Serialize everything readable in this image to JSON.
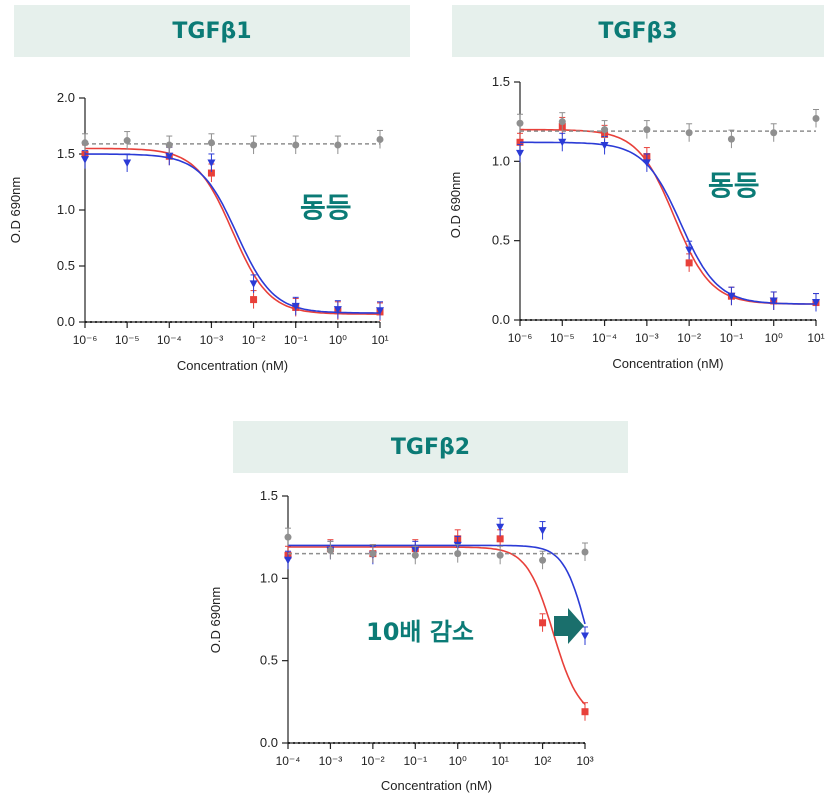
{
  "chart_data": [
    {
      "type": "line",
      "title": "TGFβ1",
      "xlabel": "Concentration (nM)",
      "ylabel": "O.D 690nm",
      "xscale": "log",
      "xticks": [
        -6,
        -5,
        -4,
        -3,
        -2,
        -1,
        0,
        1
      ],
      "yticks": [
        "0.0",
        "0.5",
        "1.0",
        "1.5",
        "2.0"
      ],
      "ylim": [
        0,
        2.0
      ],
      "annotation": "동등",
      "series": [
        {
          "color": "#e8403a",
          "marker": "square",
          "x": [
            -6,
            -4,
            -3,
            -2,
            -1,
            0,
            1
          ],
          "y": [
            1.5,
            1.48,
            1.33,
            0.2,
            0.13,
            0.1,
            0.09
          ],
          "fit": {
            "top": 1.55,
            "bottom": 0.07,
            "logEC50": -2.5,
            "hill": 1.0
          }
        },
        {
          "color": "#2b3bd6",
          "marker": "triangle-down",
          "x": [
            -6,
            -5,
            -4,
            -3,
            -2,
            -1,
            0,
            1
          ],
          "y": [
            1.45,
            1.42,
            1.48,
            1.42,
            0.34,
            0.14,
            0.11,
            0.1
          ],
          "fit": {
            "top": 1.5,
            "bottom": 0.08,
            "logEC50": -2.4,
            "hill": 1.0
          }
        },
        {
          "color": "#8f8f8f",
          "marker": "circle",
          "dashed": true,
          "x": [
            -6,
            -5,
            -4,
            -3,
            -2,
            -1,
            0,
            1
          ],
          "y": [
            1.6,
            1.62,
            1.58,
            1.6,
            1.58,
            1.58,
            1.58,
            1.63
          ],
          "fit": {
            "flat": 1.59
          }
        },
        {
          "color": "#000000",
          "dotted": true,
          "x": [
            -6,
            1
          ],
          "y": [
            0,
            0
          ]
        }
      ]
    },
    {
      "type": "line",
      "title": "TGFβ3",
      "xlabel": "Concentration (nM)",
      "ylabel": "O.D 690nm",
      "xscale": "log",
      "xticks": [
        -6,
        -5,
        -4,
        -3,
        -2,
        -1,
        0,
        1
      ],
      "yticks": [
        "0.0",
        "0.5",
        "1.0",
        "1.5"
      ],
      "ylim": [
        0,
        1.5
      ],
      "annotation": "동등",
      "series": [
        {
          "color": "#e8403a",
          "marker": "square",
          "x": [
            -6,
            -5,
            -4,
            -3,
            -2,
            -1,
            0,
            1
          ],
          "y": [
            1.12,
            1.22,
            1.17,
            1.03,
            0.36,
            0.15,
            0.12,
            0.11
          ],
          "fit": {
            "top": 1.2,
            "bottom": 0.1,
            "logEC50": -2.35,
            "hill": 1.0
          }
        },
        {
          "color": "#2b3bd6",
          "marker": "triangle-down",
          "x": [
            -6,
            -5,
            -4,
            -3,
            -2,
            -1,
            0,
            1
          ],
          "y": [
            1.05,
            1.12,
            1.1,
            0.99,
            0.44,
            0.15,
            0.12,
            0.11
          ],
          "fit": {
            "top": 1.12,
            "bottom": 0.1,
            "logEC50": -2.2,
            "hill": 1.0
          }
        },
        {
          "color": "#8f8f8f",
          "marker": "circle",
          "dashed": true,
          "x": [
            -6,
            -5,
            -4,
            -3,
            -2,
            -1,
            0,
            1
          ],
          "y": [
            1.24,
            1.25,
            1.2,
            1.2,
            1.18,
            1.14,
            1.18,
            1.27
          ],
          "fit": {
            "flat": 1.19
          }
        },
        {
          "color": "#000000",
          "dotted": true,
          "x": [
            -6,
            1
          ],
          "y": [
            0,
            0
          ]
        }
      ]
    },
    {
      "type": "line",
      "title": "TGFβ2",
      "xlabel": "Concentration (nM)",
      "ylabel": "O.D 690nm",
      "xscale": "log",
      "xticks": [
        -4,
        -3,
        -2,
        -1,
        0,
        1,
        2,
        3
      ],
      "yticks": [
        "0.0",
        "0.5",
        "1.0",
        "1.5"
      ],
      "ylim": [
        0,
        1.5
      ],
      "annotation": "10배 감소",
      "series": [
        {
          "color": "#e8403a",
          "marker": "square",
          "x": [
            -4,
            -3,
            -2,
            -1,
            0,
            1,
            2,
            3
          ],
          "y": [
            1.14,
            1.18,
            1.15,
            1.18,
            1.24,
            1.24,
            0.73,
            0.19
          ],
          "fit": {
            "top": 1.19,
            "bottom": 0.15,
            "logEC50": 2.25,
            "hill": 1.4
          }
        },
        {
          "color": "#2b3bd6",
          "marker": "triangle-down",
          "x": [
            -4,
            -3,
            -2,
            -1,
            0,
            1,
            2,
            3
          ],
          "y": [
            1.11,
            1.17,
            1.14,
            1.17,
            1.2,
            1.31,
            1.29,
            0.65
          ],
          "fit": {
            "top": 1.2,
            "bottom": 0.15,
            "logEC50": 3.05,
            "hill": 1.6
          }
        },
        {
          "color": "#8f8f8f",
          "marker": "circle",
          "dashed": true,
          "x": [
            -4,
            -3,
            -2,
            -1,
            0,
            1,
            2,
            3
          ],
          "y": [
            1.25,
            1.17,
            1.15,
            1.14,
            1.15,
            1.14,
            1.11,
            1.16
          ],
          "fit": {
            "flat": 1.15
          }
        },
        {
          "color": "#000000",
          "dotted": true,
          "x": [
            -4,
            3
          ],
          "y": [
            0,
            0
          ]
        }
      ]
    }
  ],
  "accent": "#0b7b76",
  "arrow_icon": "right-arrow-icon"
}
